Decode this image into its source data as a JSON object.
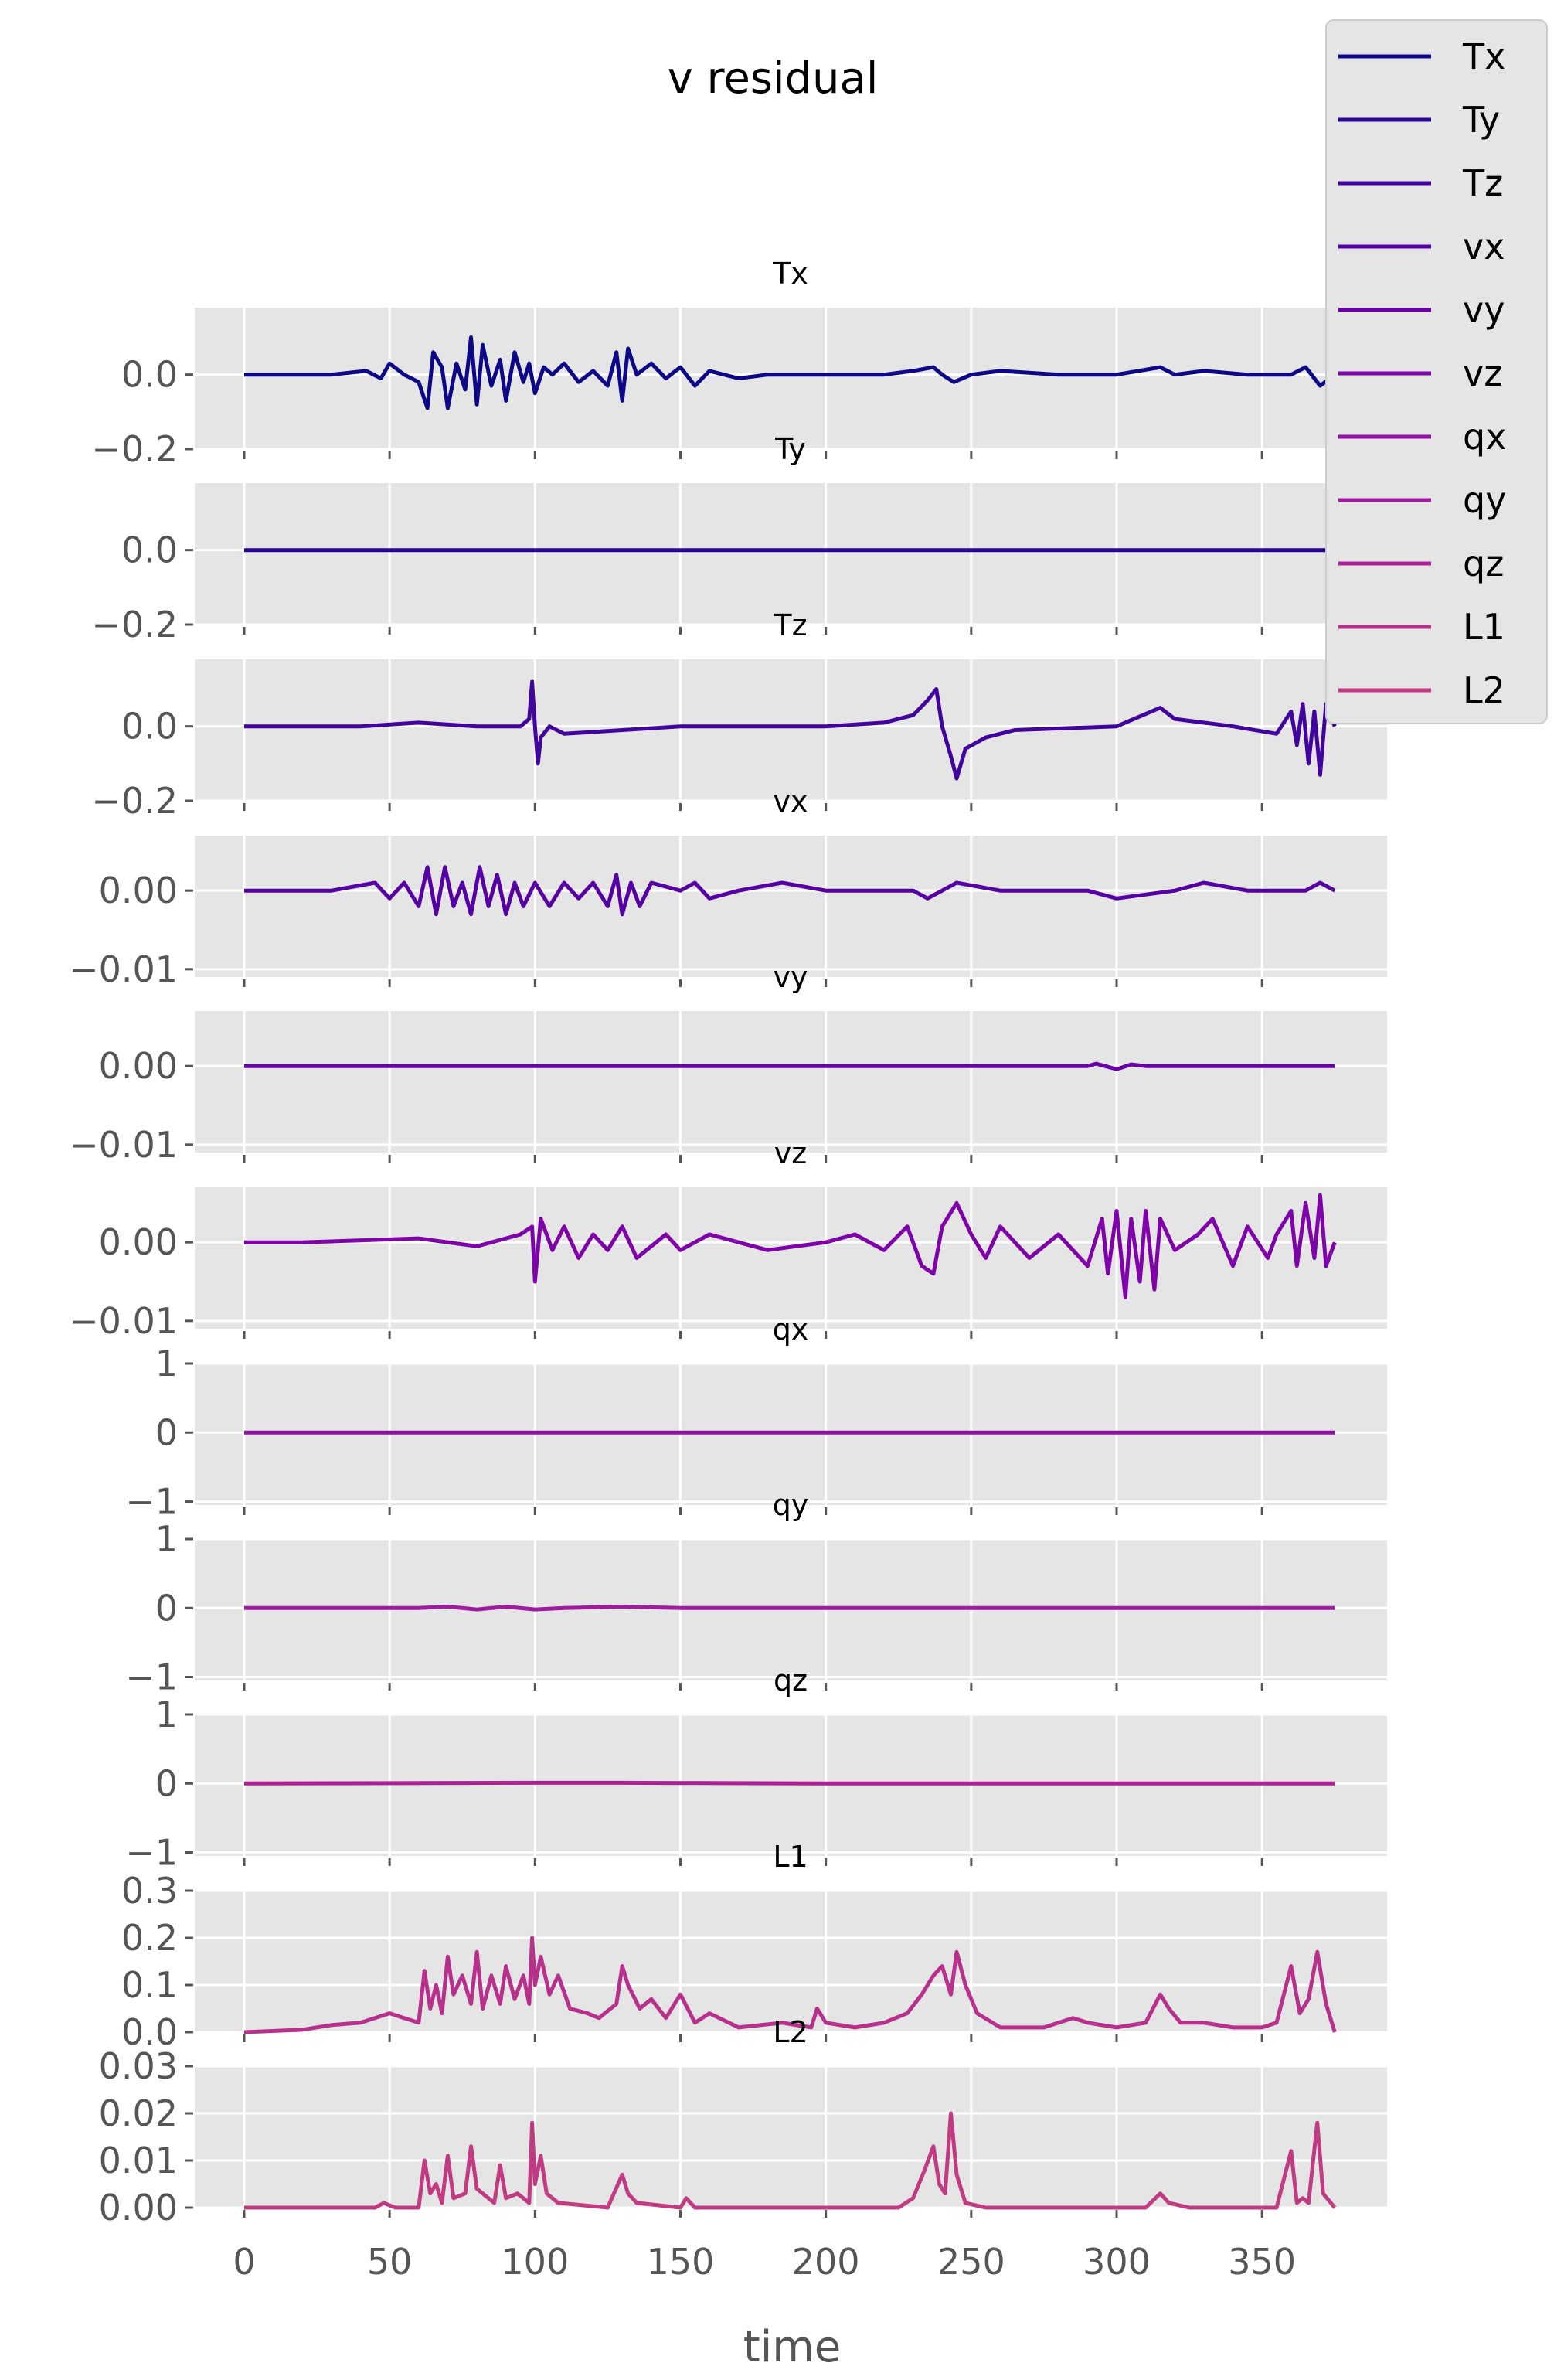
{
  "chart_data": {
    "type": "line",
    "title": "v residual",
    "xlabel": "time",
    "xlim": [
      -17,
      393
    ],
    "x_ticks": [
      0,
      50,
      100,
      150,
      200,
      250,
      300,
      350
    ],
    "x_tick_labels": [
      "0",
      "50",
      "100",
      "150",
      "200",
      "250",
      "300",
      "350"
    ],
    "grid": true,
    "legend_position": "top-right",
    "legend": [
      "Tx",
      "Ty",
      "Tz",
      "vx",
      "vy",
      "vz",
      "qx",
      "qy",
      "qz",
      "L1",
      "L2"
    ],
    "series": [
      {
        "name": "Tx",
        "color": "#0d0887",
        "ylim": [
          -0.2,
          0.18
        ],
        "yticks": [
          0.0,
          -0.2
        ],
        "ytick_labels": [
          "0.0",
          "−0.2"
        ],
        "x": [
          0,
          30,
          42,
          47,
          50,
          55,
          60,
          63,
          65,
          68,
          70,
          73,
          76,
          78,
          80,
          82,
          85,
          88,
          90,
          93,
          96,
          98,
          100,
          103,
          106,
          110,
          115,
          120,
          125,
          128,
          130,
          132,
          135,
          140,
          145,
          150,
          155,
          160,
          170,
          180,
          200,
          210,
          220,
          230,
          237,
          240,
          244,
          250,
          260,
          280,
          300,
          315,
          320,
          330,
          345,
          360,
          365,
          370,
          375
        ],
        "y": [
          0,
          0,
          0.01,
          -0.01,
          0.03,
          0.0,
          -0.02,
          -0.09,
          0.06,
          0.02,
          -0.09,
          0.03,
          -0.04,
          0.1,
          -0.08,
          0.08,
          -0.03,
          0.04,
          -0.07,
          0.06,
          -0.02,
          0.03,
          -0.05,
          0.02,
          0.0,
          0.03,
          -0.02,
          0.01,
          -0.03,
          0.06,
          -0.07,
          0.07,
          0.0,
          0.03,
          -0.01,
          0.02,
          -0.03,
          0.01,
          -0.01,
          0.0,
          0.0,
          0.0,
          0.0,
          0.01,
          0.02,
          0.0,
          -0.02,
          0.0,
          0.01,
          0.0,
          0.0,
          0.02,
          0.0,
          0.01,
          0.0,
          0.0,
          0.02,
          -0.03,
          0.0
        ]
      },
      {
        "name": "Ty",
        "color": "#2a0593",
        "ylim": [
          -0.2,
          0.18
        ],
        "yticks": [
          0.0,
          -0.2
        ],
        "ytick_labels": [
          "0.0",
          "−0.2"
        ],
        "x": [
          0,
          50,
          100,
          150,
          200,
          250,
          300,
          350,
          375
        ],
        "y": [
          0,
          0,
          0,
          0,
          0,
          0,
          0,
          0,
          0
        ]
      },
      {
        "name": "Tz",
        "color": "#41049d",
        "ylim": [
          -0.2,
          0.18
        ],
        "yticks": [
          0.0,
          -0.2
        ],
        "ytick_labels": [
          "0.0",
          "−0.2"
        ],
        "x": [
          0,
          40,
          60,
          80,
          95,
          98,
          99,
          100,
          101,
          102,
          105,
          110,
          150,
          200,
          220,
          230,
          235,
          238,
          240,
          243,
          245,
          248,
          255,
          265,
          300,
          315,
          320,
          340,
          355,
          360,
          362,
          364,
          366,
          368,
          370,
          372,
          375
        ],
        "y": [
          0,
          0.0,
          0.01,
          0.0,
          0.0,
          0.02,
          0.12,
          0.0,
          -0.1,
          -0.03,
          0.0,
          -0.02,
          0.0,
          0.0,
          0.01,
          0.03,
          0.07,
          0.1,
          0.0,
          -0.08,
          -0.14,
          -0.06,
          -0.03,
          -0.01,
          0.0,
          0.05,
          0.02,
          0.0,
          -0.02,
          0.04,
          -0.05,
          0.06,
          -0.1,
          0.04,
          -0.13,
          0.06,
          0.0
        ]
      },
      {
        "name": "vx",
        "color": "#5601a3",
        "ylim": [
          -0.011,
          0.007
        ],
        "yticks": [
          0.0,
          -0.01
        ],
        "ytick_labels": [
          "0.00",
          "−0.01"
        ],
        "x": [
          0,
          30,
          45,
          50,
          55,
          60,
          63,
          66,
          69,
          72,
          75,
          78,
          81,
          84,
          87,
          90,
          93,
          96,
          100,
          105,
          110,
          115,
          120,
          125,
          128,
          130,
          133,
          136,
          140,
          150,
          155,
          160,
          170,
          185,
          200,
          220,
          230,
          235,
          245,
          260,
          290,
          300,
          320,
          330,
          345,
          365,
          370,
          375
        ],
        "y": [
          0,
          0,
          0.001,
          -0.001,
          0.001,
          -0.002,
          0.003,
          -0.003,
          0.003,
          -0.002,
          0.001,
          -0.003,
          0.003,
          -0.002,
          0.002,
          -0.003,
          0.001,
          -0.002,
          0.001,
          -0.002,
          0.001,
          -0.001,
          0.001,
          -0.002,
          0.002,
          -0.003,
          0.001,
          -0.002,
          0.001,
          0.0,
          0.001,
          -0.001,
          0.0,
          0.001,
          0.0,
          0.0,
          0.0,
          -0.001,
          0.001,
          0.0,
          0.0,
          -0.001,
          0.0,
          0.001,
          0.0,
          0.0,
          0.001,
          0.0
        ]
      },
      {
        "name": "vy",
        "color": "#6a00a8",
        "ylim": [
          -0.011,
          0.007
        ],
        "yticks": [
          0.0,
          -0.01
        ],
        "ytick_labels": [
          "0.00",
          "−0.01"
        ],
        "x": [
          0,
          100,
          200,
          290,
          293,
          296,
          300,
          305,
          310,
          320,
          340,
          375
        ],
        "y": [
          0,
          0,
          0,
          0,
          0.0003,
          0,
          -0.0004,
          0.0002,
          0,
          0,
          0,
          0
        ]
      },
      {
        "name": "vz",
        "color": "#7e03a8",
        "ylim": [
          -0.011,
          0.007
        ],
        "yticks": [
          0.0,
          -0.01
        ],
        "ytick_labels": [
          "0.00",
          "−0.01"
        ],
        "x": [
          0,
          20,
          60,
          80,
          95,
          99,
          100,
          102,
          106,
          110,
          115,
          120,
          125,
          130,
          135,
          145,
          150,
          160,
          180,
          200,
          210,
          220,
          228,
          233,
          237,
          240,
          245,
          250,
          255,
          260,
          270,
          280,
          290,
          295,
          297,
          300,
          303,
          305,
          308,
          310,
          313,
          315,
          320,
          328,
          333,
          340,
          345,
          352,
          355,
          360,
          362,
          365,
          368,
          370,
          372,
          375
        ],
        "y": [
          0,
          0,
          0.0005,
          -0.0005,
          0.001,
          0.002,
          -0.005,
          0.003,
          -0.001,
          0.002,
          -0.002,
          0.001,
          -0.001,
          0.002,
          -0.002,
          0.001,
          -0.001,
          0.001,
          -0.001,
          0.0,
          0.001,
          -0.001,
          0.002,
          -0.003,
          -0.004,
          0.002,
          0.005,
          0.001,
          -0.002,
          0.002,
          -0.002,
          0.001,
          -0.003,
          0.003,
          -0.004,
          0.004,
          -0.007,
          0.003,
          -0.005,
          0.004,
          -0.006,
          0.003,
          -0.001,
          0.001,
          0.003,
          -0.003,
          0.002,
          -0.002,
          0.001,
          0.004,
          -0.003,
          0.005,
          -0.002,
          0.006,
          -0.003,
          0.0
        ]
      },
      {
        "name": "qx",
        "color": "#9011a3",
        "ylim": [
          -1.05,
          1.0
        ],
        "yticks": [
          1,
          0,
          -1
        ],
        "ytick_labels": [
          "1",
          "0",
          "−1"
        ],
        "x": [
          0,
          375
        ],
        "y": [
          0,
          0
        ]
      },
      {
        "name": "qy",
        "color": "#9e1c9d",
        "ylim": [
          -1.05,
          1.0
        ],
        "yticks": [
          1,
          0,
          -1
        ],
        "ytick_labels": [
          "1",
          "0",
          "−1"
        ],
        "x": [
          0,
          60,
          70,
          80,
          90,
          100,
          110,
          130,
          150,
          200,
          375
        ],
        "y": [
          0,
          0,
          0.02,
          -0.02,
          0.02,
          -0.02,
          0.0,
          0.02,
          0.0,
          0.0,
          0
        ]
      },
      {
        "name": "qz",
        "color": "#aa2395",
        "ylim": [
          -1.05,
          1.0
        ],
        "yticks": [
          1,
          0,
          -1
        ],
        "ytick_labels": [
          "1",
          "0",
          "−1"
        ],
        "x": [
          0,
          100,
          130,
          200,
          375
        ],
        "y": [
          0,
          0.01,
          0.01,
          0,
          0
        ]
      },
      {
        "name": "L1",
        "color": "#b7308c",
        "ylim": [
          0.0,
          0.3
        ],
        "yticks": [
          0.3,
          0.2,
          0.1,
          0.0
        ],
        "ytick_labels": [
          "0.3",
          "0.2",
          "0.1",
          "0.0"
        ],
        "x": [
          0,
          20,
          30,
          40,
          50,
          55,
          60,
          62,
          64,
          66,
          68,
          70,
          72,
          75,
          78,
          80,
          82,
          85,
          88,
          90,
          93,
          96,
          98,
          99,
          100,
          102,
          105,
          108,
          112,
          118,
          122,
          128,
          130,
          132,
          136,
          140,
          145,
          150,
          155,
          160,
          170,
          185,
          195,
          197,
          200,
          210,
          220,
          228,
          233,
          237,
          240,
          243,
          245,
          248,
          252,
          260,
          275,
          285,
          290,
          300,
          310,
          315,
          318,
          322,
          330,
          340,
          350,
          355,
          360,
          363,
          366,
          369,
          372,
          375
        ],
        "y": [
          0,
          0.005,
          0.015,
          0.02,
          0.04,
          0.03,
          0.02,
          0.13,
          0.05,
          0.1,
          0.04,
          0.16,
          0.08,
          0.12,
          0.06,
          0.17,
          0.05,
          0.12,
          0.06,
          0.14,
          0.07,
          0.12,
          0.06,
          0.2,
          0.1,
          0.16,
          0.08,
          0.12,
          0.05,
          0.04,
          0.03,
          0.06,
          0.14,
          0.1,
          0.05,
          0.07,
          0.03,
          0.08,
          0.02,
          0.04,
          0.01,
          0.02,
          0.01,
          0.05,
          0.02,
          0.01,
          0.02,
          0.04,
          0.08,
          0.12,
          0.14,
          0.08,
          0.17,
          0.1,
          0.04,
          0.01,
          0.01,
          0.03,
          0.02,
          0.01,
          0.02,
          0.08,
          0.05,
          0.02,
          0.02,
          0.01,
          0.01,
          0.02,
          0.14,
          0.04,
          0.07,
          0.17,
          0.06,
          0.0
        ]
      },
      {
        "name": "L2",
        "color": "#c13b82",
        "ylim": [
          0.0,
          0.03
        ],
        "yticks": [
          0.03,
          0.02,
          0.01,
          0.0
        ],
        "ytick_labels": [
          "0.03",
          "0.02",
          "0.01",
          "0.00"
        ],
        "x": [
          0,
          45,
          48,
          52,
          60,
          62,
          64,
          66,
          68,
          70,
          72,
          76,
          78,
          80,
          82,
          86,
          88,
          90,
          94,
          98,
          99,
          100,
          102,
          104,
          108,
          125,
          130,
          132,
          135,
          150,
          152,
          155,
          200,
          225,
          230,
          234,
          237,
          239,
          241,
          243,
          245,
          248,
          255,
          310,
          315,
          318,
          325,
          355,
          360,
          362,
          364,
          366,
          369,
          371,
          375
        ],
        "y": [
          0,
          0,
          0.001,
          0,
          0,
          0.01,
          0.003,
          0.005,
          0.001,
          0.011,
          0.002,
          0.003,
          0.013,
          0.004,
          0.003,
          0.001,
          0.009,
          0.002,
          0.003,
          0.001,
          0.018,
          0.005,
          0.011,
          0.003,
          0.001,
          0,
          0.007,
          0.003,
          0.001,
          0,
          0.002,
          0,
          0,
          0,
          0.002,
          0.008,
          0.013,
          0.005,
          0.003,
          0.02,
          0.007,
          0.001,
          0,
          0,
          0.003,
          0.001,
          0,
          0,
          0.012,
          0.001,
          0.002,
          0.001,
          0.018,
          0.003,
          0
        ]
      }
    ]
  }
}
